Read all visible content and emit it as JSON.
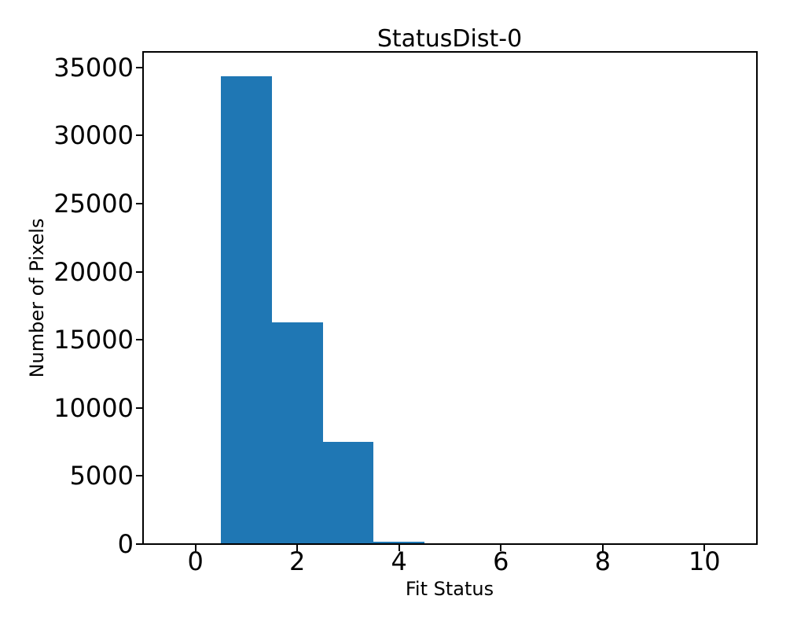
{
  "figure": {
    "background": "#ffffff",
    "text_color": "#000000"
  },
  "chart_data": {
    "type": "bar",
    "subtype": "histogram",
    "title": "StatusDist-0",
    "xlabel": "Fit Status",
    "ylabel": "Number of Pixels",
    "bin_edges": [
      0.5,
      1.5,
      2.5,
      3.5,
      4.5
    ],
    "values": [
      34330,
      16300,
      7520,
      160
    ],
    "bar_color": "#1f77b4",
    "axis_color": "#000000",
    "xlim": [
      -1.03,
      11.03
    ],
    "ylim": [
      0,
      36140
    ],
    "xticks": [
      0,
      2,
      4,
      6,
      8,
      10
    ],
    "yticks": [
      0,
      5000,
      10000,
      15000,
      20000,
      25000,
      30000,
      35000
    ],
    "grid": false,
    "legend": "none"
  }
}
